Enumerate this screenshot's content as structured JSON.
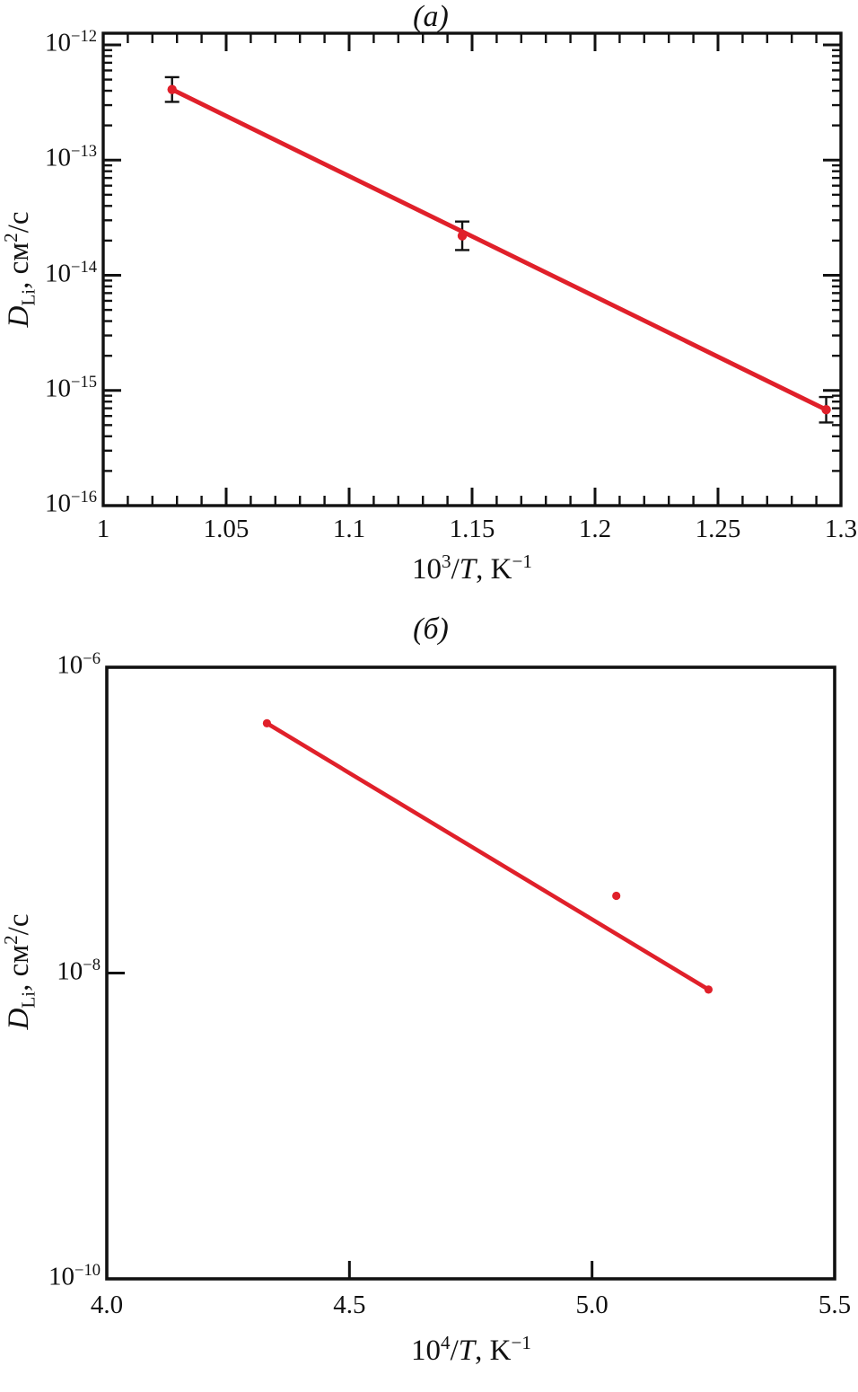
{
  "figure": {
    "background": "#ffffff",
    "ink": "#111111",
    "accent_red": "#e0202a"
  },
  "chart_data": [
    {
      "id": "a",
      "type": "scatter",
      "title": "(а)",
      "xlabel": {
        "base": "10",
        "sup": "3",
        "slash": "/",
        "var": "T",
        "unit": ", K",
        "unit_sup": "−1",
        "text": "10³/T, K⁻¹"
      },
      "ylabel": {
        "var": "D",
        "sub": "Li",
        "mid": ", см",
        "sup": "2",
        "end": "/с",
        "text": "D_Li, см²/с"
      },
      "x_axis": {
        "min": 1.0,
        "max": 1.3,
        "major_ticks": [
          1.0,
          1.05,
          1.1,
          1.15,
          1.2,
          1.25,
          1.3
        ],
        "tick_labels": [
          "1",
          "1.05",
          "1.1",
          "1.15",
          "1.2",
          "1.25",
          "1.3"
        ],
        "minor_step": 0.01,
        "mirror_ticks": true
      },
      "y_axis": {
        "scale": "log",
        "top_exp": -12,
        "bottom_exp": -16,
        "major_exps": [
          -12,
          -13,
          -14,
          -15,
          -16
        ],
        "minor_mantissas": [
          2,
          3,
          4,
          5,
          6,
          7,
          8,
          9
        ],
        "mirror_ticks": true
      },
      "points": [
        {
          "x": 1.028,
          "y": 4.1e-13,
          "yerr_factor": 1.28
        },
        {
          "x": 1.146,
          "y": 2.2e-14,
          "yerr_factor": 1.33
        },
        {
          "x": 1.294,
          "y": 6.8e-16,
          "yerr_factor": 1.29
        }
      ],
      "fit_line": [
        [
          1.028,
          4.1e-13
        ],
        [
          1.294,
          6.8e-16
        ]
      ],
      "series_color": "#e0202a",
      "grid": false,
      "legend": null
    },
    {
      "id": "b",
      "type": "scatter",
      "title": "(б)",
      "xlabel": {
        "base": "10",
        "sup": "4",
        "slash": "/",
        "var": "T",
        "unit": ", K",
        "unit_sup": "−1",
        "text": "10⁴/T, K⁻¹"
      },
      "ylabel": {
        "var": "D",
        "sub": "Li",
        "mid": ", см",
        "sup": "2",
        "end": "/с",
        "text": "D_Li, см²/с"
      },
      "x_axis": {
        "min": 4.0,
        "max": 5.5,
        "major_ticks": [
          4.0,
          4.5,
          5.0,
          5.5
        ],
        "tick_labels": [
          "4.0",
          "4.5",
          "5.0",
          "5.5"
        ],
        "mirror_ticks": false
      },
      "y_axis": {
        "scale": "log",
        "top_exp": -6,
        "bottom_exp": -10,
        "major_exps": [
          -6,
          -8,
          -10
        ],
        "mirror_ticks": false
      },
      "points": [
        {
          "x": 4.33,
          "y": 4.3e-07
        },
        {
          "x": 5.05,
          "y": 3.2e-08
        },
        {
          "x": 5.24,
          "y": 7.8e-09
        }
      ],
      "fit_line": [
        [
          4.33,
          4.3e-07
        ],
        [
          5.24,
          7.8e-09
        ]
      ],
      "series_color": "#e0202a",
      "grid": false,
      "legend": null
    }
  ]
}
